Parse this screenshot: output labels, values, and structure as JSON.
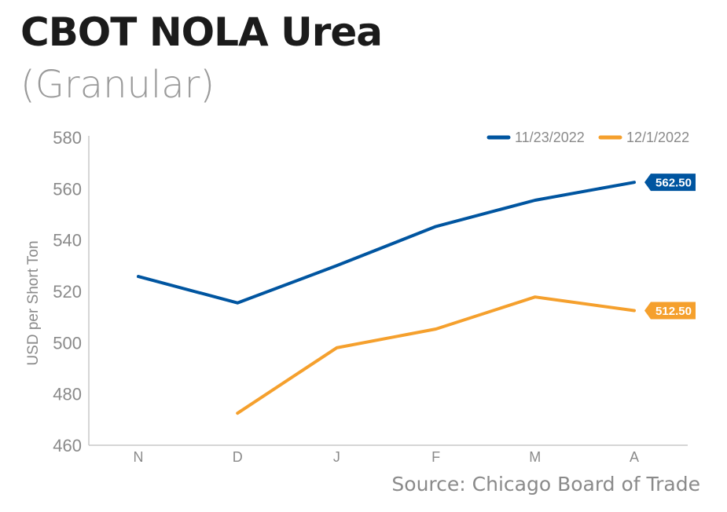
{
  "header": {
    "title": "CBOT NOLA Urea",
    "subtitle": "(Granular)"
  },
  "footer": {
    "source": "Source: Chicago Board of Trade"
  },
  "colors": {
    "series_1": "#0055a0",
    "series_2": "#f5a02d",
    "axis": "#c9c9c9",
    "tick_text": "#8a8a8a"
  },
  "chart_data": {
    "type": "line",
    "title": "CBOT NOLA Urea",
    "subtitle": "(Granular)",
    "xlabel": "",
    "ylabel": "USD per Short Ton",
    "categories": [
      "N",
      "D",
      "J",
      "F",
      "M",
      "A"
    ],
    "ylim": [
      460,
      580
    ],
    "yticks": [
      460,
      480,
      500,
      520,
      540,
      560,
      580
    ],
    "grid": false,
    "legend_position": "top-right",
    "series": [
      {
        "name": "11/23/2022",
        "color": "#0055a0",
        "values": [
          525.8,
          515.5,
          530.0,
          545.3,
          555.5,
          562.5
        ],
        "end_label": "562.50"
      },
      {
        "name": "12/1/2022",
        "color": "#f5a02d",
        "values": [
          null,
          472.5,
          498.0,
          505.3,
          517.8,
          512.5
        ],
        "end_label": "512.50"
      }
    ]
  }
}
